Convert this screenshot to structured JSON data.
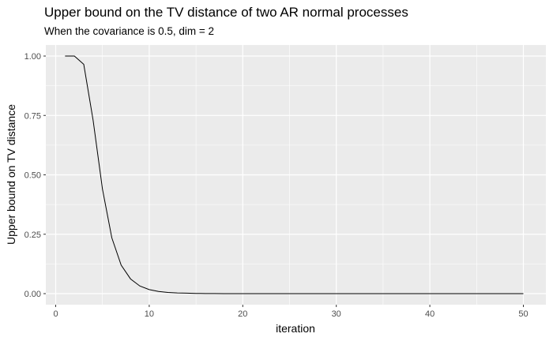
{
  "chart_data": {
    "type": "line",
    "title": "Upper bound on the TV distance of two AR normal processes",
    "subtitle": "When the covariance is 0.5, dim = 2",
    "xlabel": "iteration",
    "ylabel": "Upper bound on TV distance",
    "xlim": [
      0,
      50
    ],
    "ylim": [
      0,
      1
    ],
    "x_ticks": [
      0,
      10,
      20,
      30,
      40,
      50
    ],
    "y_ticks": [
      "0.00",
      "0.25",
      "0.50",
      "0.75",
      "1.00"
    ],
    "grid": true,
    "legend": "none",
    "colors": {
      "panel": "#ebebeb",
      "grid": "#ffffff",
      "line": "#000000"
    },
    "series": [
      {
        "x": [
          1,
          2,
          3,
          4,
          5,
          6,
          7,
          8,
          9,
          10,
          11,
          12,
          13,
          14,
          15,
          16,
          17,
          18,
          19,
          20,
          21,
          22,
          23,
          24,
          25,
          26,
          27,
          28,
          29,
          30,
          31,
          32,
          33,
          34,
          35,
          36,
          37,
          38,
          39,
          40,
          41,
          42,
          43,
          44,
          45,
          46,
          47,
          48,
          49,
          50
        ],
        "values": [
          1.0,
          1.0,
          0.965,
          0.73,
          0.44,
          0.235,
          0.12,
          0.062,
          0.032,
          0.017,
          0.009,
          0.005,
          0.003,
          0.002,
          0.001,
          0.0005,
          0.0003,
          0.0002,
          0.0001,
          0.0,
          0.0,
          0.0,
          0.0,
          0.0,
          0.0,
          0.0,
          0.0,
          0.0,
          0.0,
          0.0,
          0.0,
          0.0,
          0.0,
          0.0,
          0.0,
          0.0,
          0.0,
          0.0,
          0.0,
          0.0,
          0.0,
          0.0,
          0.0,
          0.0,
          0.0,
          0.0,
          0.0,
          0.0,
          0.0,
          0.0
        ]
      }
    ]
  }
}
